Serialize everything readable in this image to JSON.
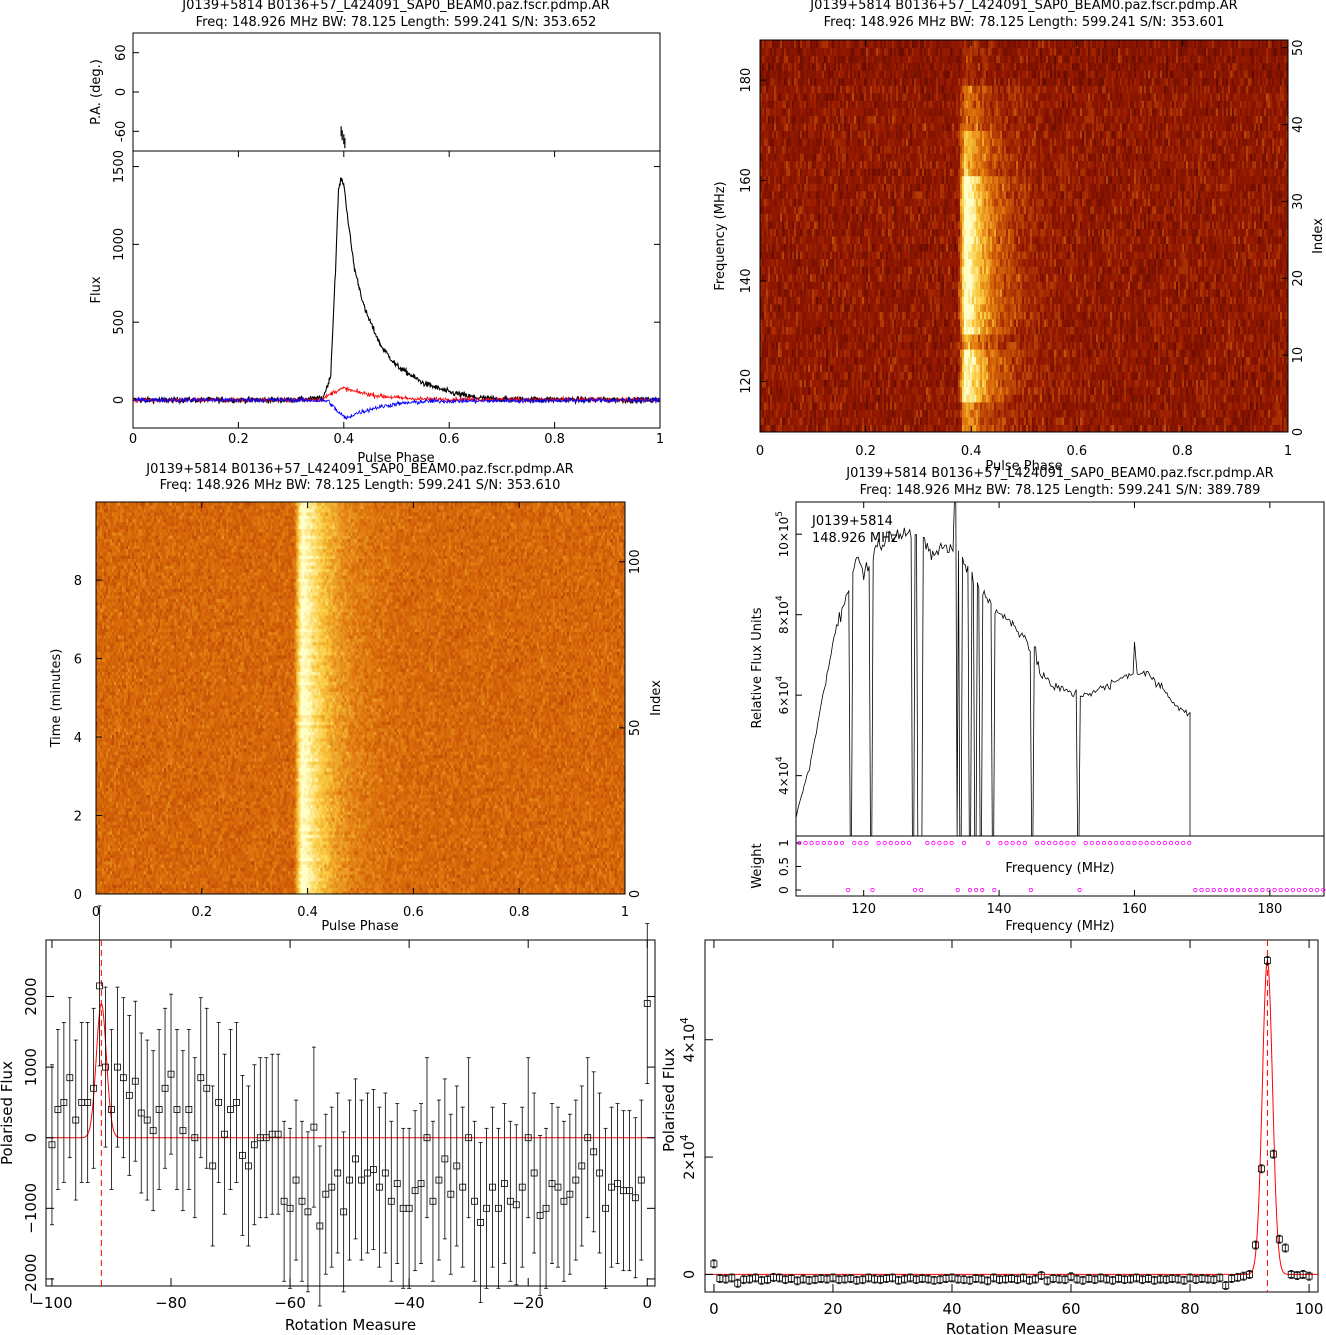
{
  "chart_data": [
    {
      "id": "profile",
      "type": "line",
      "title": "J0139+5814  B0136+57_L424091_SAP0_BEAM0.paz.fscr.pdmp.AR",
      "subtitle": "Freq: 148.926 MHz BW: 78.125 Length: 599.241 S/N: 353.652",
      "xlabel": "Pulse Phase",
      "ylabel": "Flux",
      "pa_ylabel": "P.A. (deg.)",
      "xlim": [
        0,
        1
      ],
      "ylim": [
        -180,
        1600
      ],
      "pa_ylim": [
        -90,
        90
      ],
      "x_ticks": [
        "0",
        "0.2",
        "0.4",
        "0.6",
        "0.8",
        "1"
      ],
      "y_ticks": [
        "0",
        "500",
        "1000",
        "1500"
      ],
      "pa_ticks": [
        "-60",
        "0",
        "60"
      ],
      "series": [
        {
          "color": "#000000",
          "x": [
            0.3,
            0.36,
            0.375,
            0.385,
            0.39,
            0.395,
            0.4,
            0.41,
            0.42,
            0.44,
            0.47,
            0.5,
            0.55,
            0.6,
            0.65,
            0.7,
            1.0
          ],
          "values": [
            0,
            10,
            150,
            900,
            1350,
            1420,
            1390,
            1100,
            850,
            580,
            350,
            220,
            110,
            50,
            15,
            5,
            0
          ]
        },
        {
          "color": "#ff0000",
          "x": [
            0.3,
            0.36,
            0.38,
            0.4,
            0.42,
            0.46,
            0.5,
            0.55,
            1.0
          ],
          "values": [
            0,
            5,
            50,
            75,
            55,
            30,
            15,
            5,
            0
          ]
        },
        {
          "color": "#0000ff",
          "x": [
            0.3,
            0.37,
            0.39,
            0.405,
            0.42,
            0.46,
            0.5,
            0.56,
            1.0
          ],
          "values": [
            0,
            -5,
            -80,
            -120,
            -90,
            -50,
            -25,
            -8,
            0
          ]
        }
      ]
    },
    {
      "id": "freq-phase",
      "type": "heatmap",
      "title": "J0139+5814  B0136+57_L424091_SAP0_BEAM0.paz.fscr.pdmp.AR",
      "subtitle": "Freq: 148.926 MHz BW: 78.125 Length: 599.241 S/N: 353.601",
      "xlabel": "Pulse Phase",
      "ylabel": "Frequency (MHz)",
      "right_label": "Index",
      "xlim": [
        0,
        1
      ],
      "ylim": [
        109.9,
        188
      ],
      "x_ticks": [
        "0",
        "0.2",
        "0.4",
        "0.6",
        "0.8",
        "1"
      ],
      "y_ticks": [
        "120",
        "140",
        "160",
        "180"
      ],
      "right_ticks": [
        "0",
        "10",
        "20",
        "30",
        "40",
        "50"
      ]
    },
    {
      "id": "time-phase",
      "type": "heatmap",
      "title": "J0139+5814  B0136+57_L424091_SAP0_BEAM0.paz.fscr.pdmp.AR",
      "subtitle": "Freq: 148.926 MHz BW: 78.125 Length: 599.241 S/N: 353.610",
      "xlabel": "Pulse Phase",
      "ylabel": "Time (minutes)",
      "right_label": "Index",
      "xlim": [
        0,
        1
      ],
      "ylim": [
        0,
        9.99
      ],
      "x_ticks": [
        "0",
        "0.2",
        "0.4",
        "0.6",
        "0.8",
        "1"
      ],
      "y_ticks": [
        "0",
        "2",
        "4",
        "6",
        "8"
      ],
      "right_ticks": [
        "0",
        "50",
        "100"
      ]
    },
    {
      "id": "spectrum",
      "type": "line",
      "title": "J0139+5814  B0136+57_L424091_SAP0_BEAM0.paz.fscr.pdmp.AR",
      "subtitle": "Freq: 148.926 MHz BW: 78.125 Length: 599.241 S/N: 389.789",
      "annotation_lines": [
        "J0139+5814",
        "148.926 MHz"
      ],
      "ylabel": "Relative Flux Units",
      "weight_label": "Weight",
      "inner_xlabel": "Frequency (MHz)",
      "xlabel": "Frequency (MHz)",
      "xlim": [
        110,
        188
      ],
      "ylim": [
        25000,
        108000
      ],
      "y_ticks": [
        {
          "v": 40000,
          "m": "4",
          "e": "4"
        },
        {
          "v": 60000,
          "m": "6",
          "e": "4"
        },
        {
          "v": 80000,
          "m": "8",
          "e": "4"
        },
        {
          "v": 100000,
          "m": "10",
          "e": "5"
        }
      ],
      "x_ticks": [
        "120",
        "140",
        "160",
        "180"
      ],
      "weight_ticks": [
        "0",
        "0.5",
        "1"
      ],
      "freq": [
        110,
        112,
        114,
        116,
        117.5,
        119,
        120,
        122,
        124,
        126,
        128,
        130,
        132,
        134,
        136,
        138,
        140,
        142,
        144,
        146,
        148,
        150,
        152,
        154,
        156,
        158,
        159.8,
        160,
        160.3,
        162,
        164,
        166,
        168.2
      ],
      "flux": [
        30000,
        42000,
        60000,
        78000,
        84000,
        95000,
        90000,
        97000,
        100000,
        101000,
        100000,
        95000,
        97000,
        95000,
        90000,
        85000,
        80000,
        78000,
        74000,
        66000,
        62000,
        61000,
        60000,
        61000,
        62000,
        64000,
        66000,
        73000,
        66000,
        65000,
        62000,
        58000,
        55000
      ],
      "flagged": [
        118.1,
        121.2,
        127.4,
        128.1,
        128.6,
        133.6,
        134.2,
        135.6,
        136.4,
        137.2,
        139.1,
        144.8,
        151.7
      ],
      "spikes": [
        {
          "f": 133.4,
          "v": 108000
        },
        {
          "f": 145.3,
          "v": 72000
        }
      ],
      "flagged_above": 168.3
    },
    {
      "id": "rm-fine",
      "type": "scatter",
      "xlabel": "Rotation Measure",
      "ylabel": "Polarised Flux",
      "xlim": [
        -101,
        1.3
      ],
      "ylim": [
        -2100,
        2800
      ],
      "x_ticks": [
        "−100",
        "−80",
        "−60",
        "−40",
        "−20",
        "0"
      ],
      "y_ticks": [
        "−2000",
        "−1000",
        "0",
        "1000",
        "2000"
      ],
      "peak_rm": -91.7,
      "fit_amplitude": 1900,
      "fit_sigma": 0.85,
      "points": [
        {
          "x": -100,
          "y": -100
        },
        {
          "x": -99,
          "y": 400
        },
        {
          "x": -98,
          "y": 500
        },
        {
          "x": -97,
          "y": 850
        },
        {
          "x": -96,
          "y": 250
        },
        {
          "x": -95,
          "y": 500
        },
        {
          "x": -94,
          "y": 500
        },
        {
          "x": -93,
          "y": 700
        },
        {
          "x": -92,
          "y": 2150
        },
        {
          "x": -91,
          "y": 1000
        },
        {
          "x": -90,
          "y": 400
        },
        {
          "x": -89,
          "y": 1000
        },
        {
          "x": -88,
          "y": 850
        },
        {
          "x": -87,
          "y": 600
        },
        {
          "x": -86,
          "y": 800
        },
        {
          "x": -85,
          "y": 350
        },
        {
          "x": -84,
          "y": 250
        },
        {
          "x": -83,
          "y": 100
        },
        {
          "x": -82,
          "y": 400
        },
        {
          "x": -81,
          "y": 700
        },
        {
          "x": -80,
          "y": 900
        },
        {
          "x": -79,
          "y": 400
        },
        {
          "x": -78,
          "y": 100
        },
        {
          "x": -77,
          "y": 400
        },
        {
          "x": -76,
          "y": 0
        },
        {
          "x": -75,
          "y": 850
        },
        {
          "x": -74,
          "y": 700
        },
        {
          "x": -73,
          "y": -400
        },
        {
          "x": -72,
          "y": 500
        },
        {
          "x": -71,
          "y": 50
        },
        {
          "x": -70,
          "y": 400
        },
        {
          "x": -69,
          "y": 500
        },
        {
          "x": -68,
          "y": -250
        },
        {
          "x": -67,
          "y": -400
        },
        {
          "x": -66,
          "y": -100
        },
        {
          "x": -65,
          "y": 0
        },
        {
          "x": -64,
          "y": 0
        },
        {
          "x": -63,
          "y": 50
        },
        {
          "x": -62,
          "y": 50
        },
        {
          "x": -61,
          "y": -900
        },
        {
          "x": -60,
          "y": -1000
        },
        {
          "x": -59,
          "y": -600
        },
        {
          "x": -58,
          "y": -900
        },
        {
          "x": -57,
          "y": -1050
        },
        {
          "x": -56,
          "y": 150
        },
        {
          "x": -55,
          "y": -1250
        },
        {
          "x": -54,
          "y": -800
        },
        {
          "x": -53,
          "y": -700
        },
        {
          "x": -52,
          "y": -500
        },
        {
          "x": -51,
          "y": -1050
        },
        {
          "x": -50,
          "y": -600
        },
        {
          "x": -49,
          "y": -300
        },
        {
          "x": -48,
          "y": -600
        },
        {
          "x": -47,
          "y": -500
        },
        {
          "x": -46,
          "y": -450
        },
        {
          "x": -45,
          "y": -700
        },
        {
          "x": -44,
          "y": -500
        },
        {
          "x": -43,
          "y": -900
        },
        {
          "x": -42,
          "y": -650
        },
        {
          "x": -41,
          "y": -1000
        },
        {
          "x": -40,
          "y": -1000
        },
        {
          "x": -39,
          "y": -750
        },
        {
          "x": -38,
          "y": -650
        },
        {
          "x": -37,
          "y": 0
        },
        {
          "x": -36,
          "y": -900
        },
        {
          "x": -35,
          "y": -600
        },
        {
          "x": -34,
          "y": -300
        },
        {
          "x": -33,
          "y": -800
        },
        {
          "x": -32,
          "y": -400
        },
        {
          "x": -31,
          "y": -700
        },
        {
          "x": -30,
          "y": 0
        },
        {
          "x": -29,
          "y": -900
        },
        {
          "x": -28,
          "y": -1200
        },
        {
          "x": -27,
          "y": -1000
        },
        {
          "x": -26,
          "y": -700
        },
        {
          "x": -25,
          "y": -1000
        },
        {
          "x": -24,
          "y": -650
        },
        {
          "x": -23,
          "y": -900
        },
        {
          "x": -22,
          "y": -950
        },
        {
          "x": -21,
          "y": -700
        },
        {
          "x": -20,
          "y": 0
        },
        {
          "x": -19,
          "y": -500
        },
        {
          "x": -18,
          "y": -1100
        },
        {
          "x": -17,
          "y": -1000
        },
        {
          "x": -16,
          "y": -650
        },
        {
          "x": -15,
          "y": -700
        },
        {
          "x": -14,
          "y": -900
        },
        {
          "x": -13,
          "y": -800
        },
        {
          "x": -12,
          "y": -600
        },
        {
          "x": -11,
          "y": -400
        },
        {
          "x": -10,
          "y": 0
        },
        {
          "x": -9,
          "y": -200
        },
        {
          "x": -8,
          "y": -500
        },
        {
          "x": -7,
          "y": -1000
        },
        {
          "x": -6,
          "y": -700
        },
        {
          "x": -5,
          "y": -650
        },
        {
          "x": -4,
          "y": -750
        },
        {
          "x": -3,
          "y": -750
        },
        {
          "x": -2,
          "y": -850
        },
        {
          "x": -1,
          "y": -600
        },
        {
          "x": 0,
          "y": 1900
        }
      ]
    },
    {
      "id": "rm-coarse",
      "type": "scatter",
      "xlabel": "Rotation Measure",
      "ylabel": "Polarised Flux",
      "xlim": [
        -1.5,
        101.5
      ],
      "ylim": [
        -3000,
        57000
      ],
      "x_ticks": [
        "0",
        "20",
        "40",
        "60",
        "80",
        "100"
      ],
      "y_ticks": [
        {
          "v": 0,
          "m": "0",
          "e": ""
        },
        {
          "v": 20000,
          "m": "2",
          "e": "4"
        },
        {
          "v": 40000,
          "m": "4",
          "e": "4"
        }
      ],
      "peak_rm": 93,
      "fit_amplitude": 53500,
      "fit_sigma": 0.85,
      "points": [
        {
          "x": 0,
          "y": 1800
        },
        {
          "x": 1,
          "y": -700
        },
        {
          "x": 2,
          "y": -800
        },
        {
          "x": 3,
          "y": -600
        },
        {
          "x": 4,
          "y": -1500
        },
        {
          "x": 5,
          "y": -900
        },
        {
          "x": 6,
          "y": -800
        },
        {
          "x": 7,
          "y": -600
        },
        {
          "x": 8,
          "y": -1000
        },
        {
          "x": 9,
          "y": -900
        },
        {
          "x": 10,
          "y": -500
        },
        {
          "x": 11,
          "y": -600
        },
        {
          "x": 12,
          "y": -900
        },
        {
          "x": 13,
          "y": -700
        },
        {
          "x": 14,
          "y": -1100
        },
        {
          "x": 15,
          "y": -800
        },
        {
          "x": 16,
          "y": -1000
        },
        {
          "x": 17,
          "y": -900
        },
        {
          "x": 18,
          "y": -700
        },
        {
          "x": 19,
          "y": -800
        },
        {
          "x": 20,
          "y": -600
        },
        {
          "x": 21,
          "y": -900
        },
        {
          "x": 22,
          "y": -800
        },
        {
          "x": 23,
          "y": -700
        },
        {
          "x": 24,
          "y": -1000
        },
        {
          "x": 25,
          "y": -900
        },
        {
          "x": 26,
          "y": -600
        },
        {
          "x": 27,
          "y": -800
        },
        {
          "x": 28,
          "y": -900
        },
        {
          "x": 29,
          "y": -700
        },
        {
          "x": 30,
          "y": -600
        },
        {
          "x": 31,
          "y": -1000
        },
        {
          "x": 32,
          "y": -800
        },
        {
          "x": 33,
          "y": -600
        },
        {
          "x": 34,
          "y": -900
        },
        {
          "x": 35,
          "y": -700
        },
        {
          "x": 36,
          "y": -800
        },
        {
          "x": 37,
          "y": -1000
        },
        {
          "x": 38,
          "y": -900
        },
        {
          "x": 39,
          "y": -700
        },
        {
          "x": 40,
          "y": -600
        },
        {
          "x": 41,
          "y": -800
        },
        {
          "x": 42,
          "y": -900
        },
        {
          "x": 43,
          "y": -1000
        },
        {
          "x": 44,
          "y": -700
        },
        {
          "x": 45,
          "y": -800
        },
        {
          "x": 46,
          "y": -1100
        },
        {
          "x": 47,
          "y": -600
        },
        {
          "x": 48,
          "y": -900
        },
        {
          "x": 49,
          "y": -800
        },
        {
          "x": 50,
          "y": -700
        },
        {
          "x": 51,
          "y": -900
        },
        {
          "x": 52,
          "y": -600
        },
        {
          "x": 53,
          "y": -1000
        },
        {
          "x": 54,
          "y": -800
        },
        {
          "x": 55,
          "y": -200
        },
        {
          "x": 56,
          "y": -1100
        },
        {
          "x": 57,
          "y": -700
        },
        {
          "x": 58,
          "y": -800
        },
        {
          "x": 59,
          "y": -900
        },
        {
          "x": 60,
          "y": -400
        },
        {
          "x": 61,
          "y": -800
        },
        {
          "x": 62,
          "y": -1000
        },
        {
          "x": 63,
          "y": -700
        },
        {
          "x": 64,
          "y": -900
        },
        {
          "x": 65,
          "y": -600
        },
        {
          "x": 66,
          "y": -800
        },
        {
          "x": 67,
          "y": -1000
        },
        {
          "x": 68,
          "y": -700
        },
        {
          "x": 69,
          "y": -900
        },
        {
          "x": 70,
          "y": -800
        },
        {
          "x": 71,
          "y": -600
        },
        {
          "x": 72,
          "y": -900
        },
        {
          "x": 73,
          "y": -700
        },
        {
          "x": 74,
          "y": -1000
        },
        {
          "x": 75,
          "y": -800
        },
        {
          "x": 76,
          "y": -900
        },
        {
          "x": 77,
          "y": -700
        },
        {
          "x": 78,
          "y": -800
        },
        {
          "x": 79,
          "y": -1000
        },
        {
          "x": 80,
          "y": -600
        },
        {
          "x": 81,
          "y": -900
        },
        {
          "x": 82,
          "y": -700
        },
        {
          "x": 83,
          "y": -800
        },
        {
          "x": 84,
          "y": -900
        },
        {
          "x": 85,
          "y": -600
        },
        {
          "x": 86,
          "y": -1900
        },
        {
          "x": 87,
          "y": -700
        },
        {
          "x": 88,
          "y": -500
        },
        {
          "x": 89,
          "y": -300
        },
        {
          "x": 90,
          "y": 0
        },
        {
          "x": 91,
          "y": 5000
        },
        {
          "x": 92,
          "y": 18000
        },
        {
          "x": 93,
          "y": 53500
        },
        {
          "x": 94,
          "y": 20500
        },
        {
          "x": 95,
          "y": 6000
        },
        {
          "x": 96,
          "y": 4500
        },
        {
          "x": 97,
          "y": 0
        },
        {
          "x": 98,
          "y": -200
        },
        {
          "x": 99,
          "y": 0
        },
        {
          "x": 100,
          "y": -300
        }
      ]
    }
  ]
}
